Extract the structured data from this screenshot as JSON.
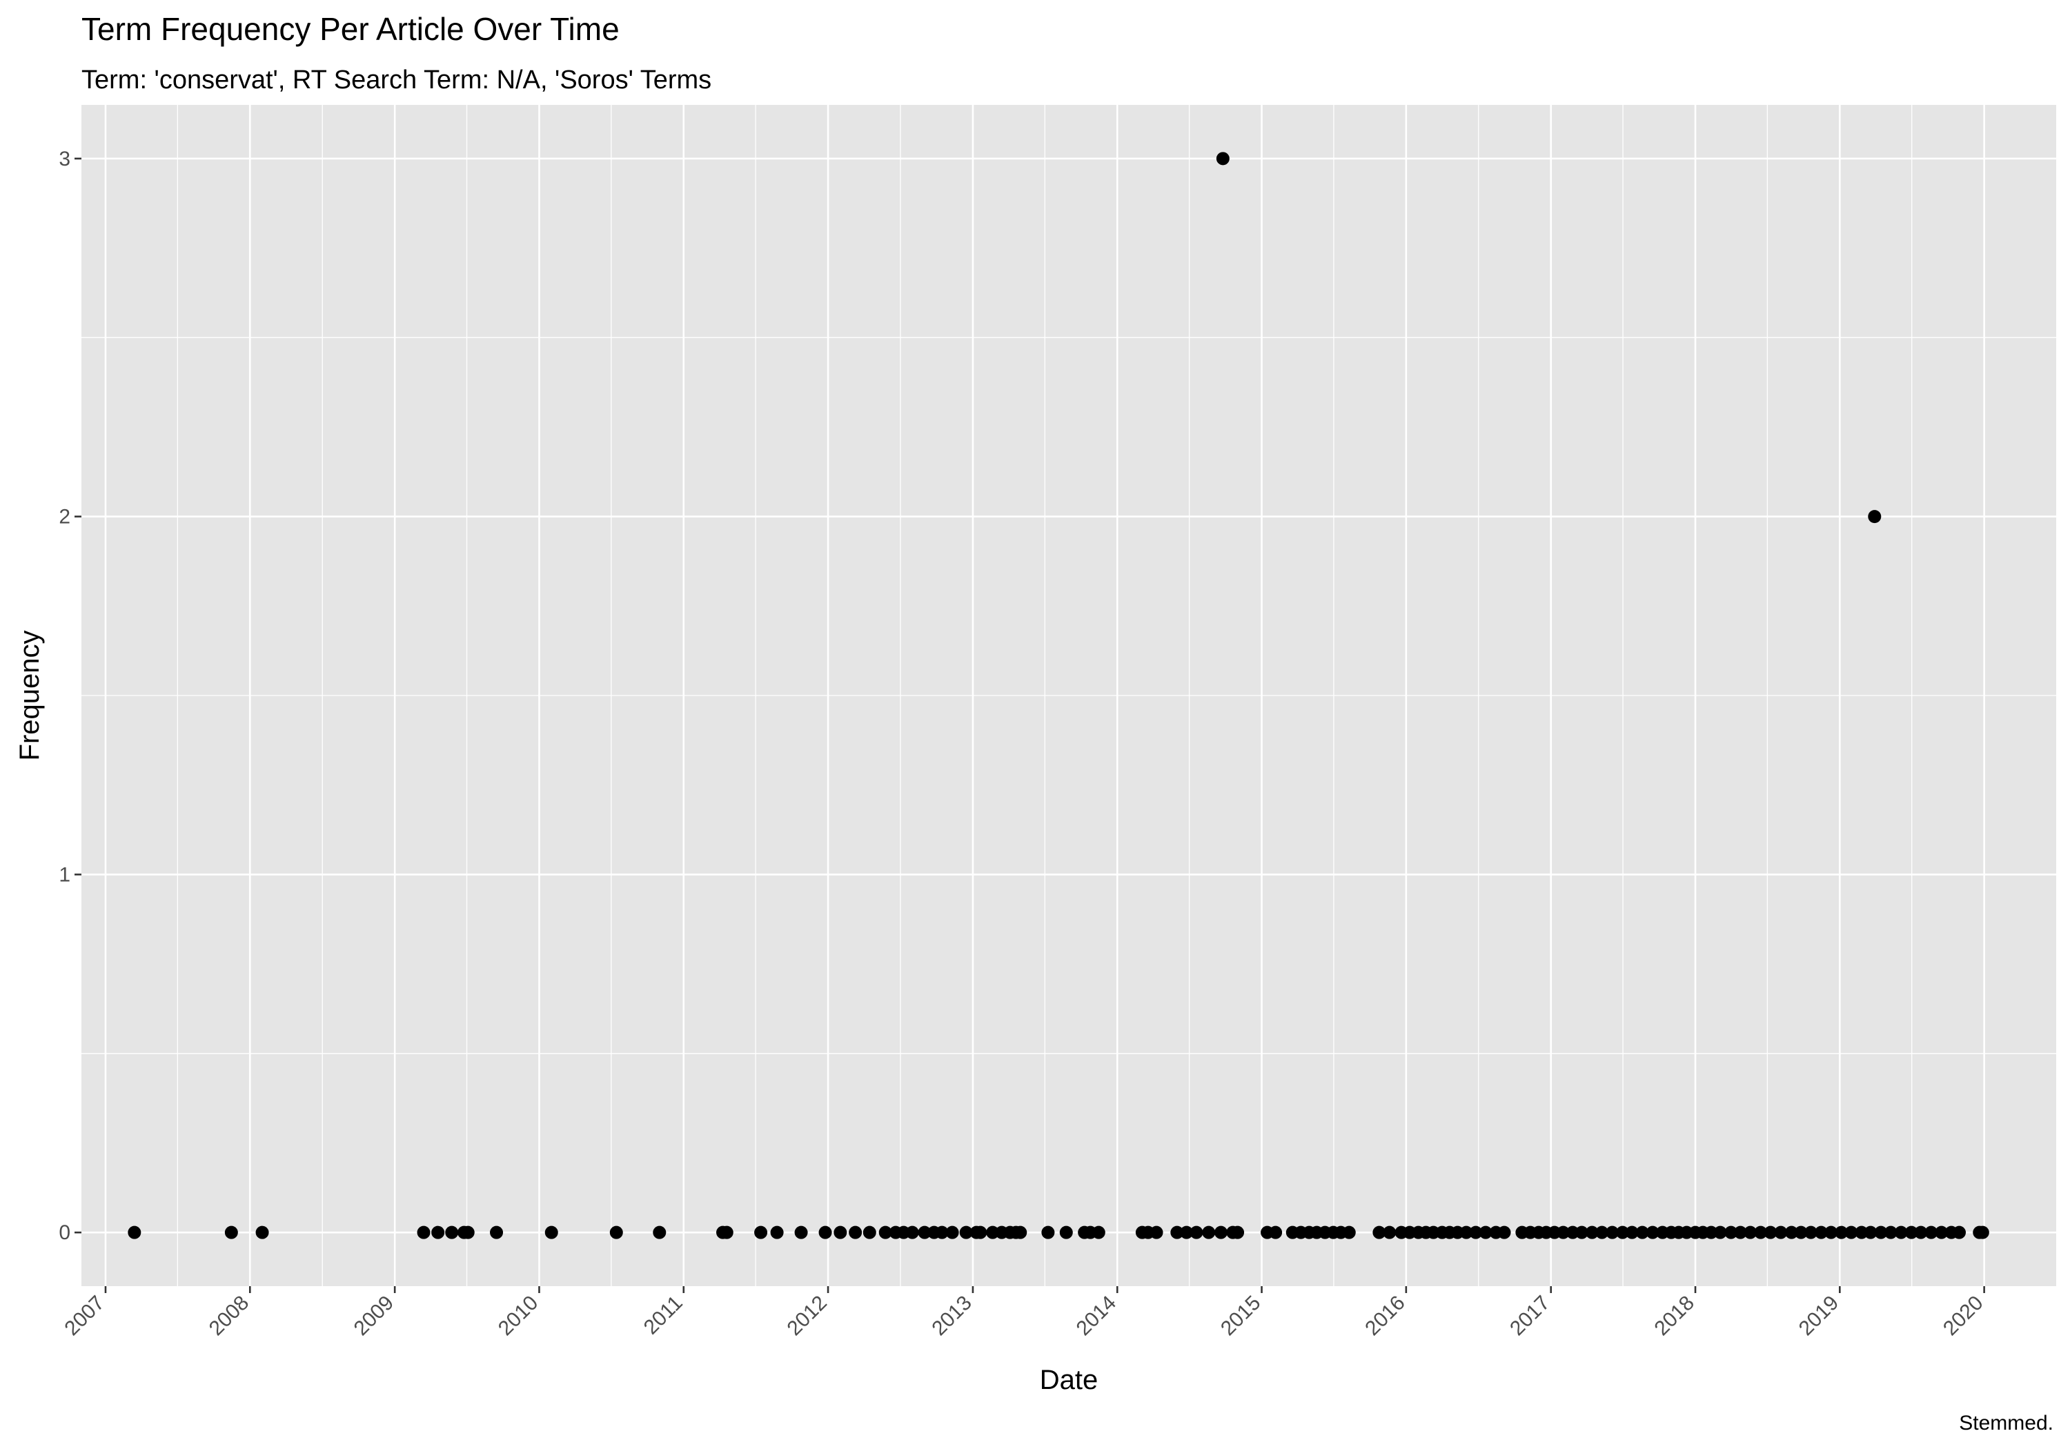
{
  "chart_data": {
    "type": "scatter",
    "title": "Term Frequency Per Article Over Time",
    "subtitle": "Term: 'conservat', RT Search Term: N/A, 'Soros' Terms",
    "xlabel": "Date",
    "ylabel": "Frequency",
    "caption": "Stemmed.",
    "x_ticks": [
      "2007",
      "2008",
      "2009",
      "2010",
      "2011",
      "2012",
      "2013",
      "2014",
      "2015",
      "2016",
      "2017",
      "2018",
      "2019",
      "2020"
    ],
    "y_ticks": [
      0,
      1,
      2,
      3
    ],
    "xlim": [
      "2006-11-01",
      "2020-07-01"
    ],
    "ylim": [
      -0.15,
      3.15
    ],
    "grid": true,
    "legend": "none",
    "colors": {
      "panel": "#e5e5e5",
      "grid": "#ffffff",
      "point": "#000000",
      "tick": "#333333"
    },
    "series": [
      {
        "points": [
          {
            "x": "2007-03-15",
            "y": 0
          },
          {
            "x": "2007-11-15",
            "y": 0
          },
          {
            "x": "2008-02-01",
            "y": 0
          },
          {
            "x": "2009-03-15",
            "y": 0
          },
          {
            "x": "2009-04-20",
            "y": 0
          },
          {
            "x": "2009-05-25",
            "y": 0
          },
          {
            "x": "2009-06-25",
            "y": 0
          },
          {
            "x": "2009-07-05",
            "y": 0
          },
          {
            "x": "2009-09-15",
            "y": 0
          },
          {
            "x": "2010-02-01",
            "y": 0
          },
          {
            "x": "2010-07-15",
            "y": 0
          },
          {
            "x": "2010-11-01",
            "y": 0
          },
          {
            "x": "2011-04-10",
            "y": 0
          },
          {
            "x": "2011-04-20",
            "y": 0
          },
          {
            "x": "2011-07-15",
            "y": 0
          },
          {
            "x": "2011-08-25",
            "y": 0
          },
          {
            "x": "2011-10-25",
            "y": 0
          },
          {
            "x": "2011-12-25",
            "y": 0
          },
          {
            "x": "2012-02-01",
            "y": 0
          },
          {
            "x": "2012-03-10",
            "y": 0
          },
          {
            "x": "2012-04-15",
            "y": 0
          },
          {
            "x": "2012-05-25",
            "y": 0
          },
          {
            "x": "2012-06-20",
            "y": 0
          },
          {
            "x": "2012-07-10",
            "y": 0
          },
          {
            "x": "2012-08-01",
            "y": 0
          },
          {
            "x": "2012-09-01",
            "y": 0
          },
          {
            "x": "2012-09-25",
            "y": 0
          },
          {
            "x": "2012-10-15",
            "y": 0
          },
          {
            "x": "2012-11-10",
            "y": 0
          },
          {
            "x": "2012-12-15",
            "y": 0
          },
          {
            "x": "2013-01-10",
            "y": 0
          },
          {
            "x": "2013-01-20",
            "y": 0
          },
          {
            "x": "2013-02-20",
            "y": 0
          },
          {
            "x": "2013-03-15",
            "y": 0
          },
          {
            "x": "2013-04-05",
            "y": 0
          },
          {
            "x": "2013-04-20",
            "y": 0
          },
          {
            "x": "2013-05-01",
            "y": 0
          },
          {
            "x": "2013-07-10",
            "y": 0
          },
          {
            "x": "2013-08-25",
            "y": 0
          },
          {
            "x": "2013-10-10",
            "y": 0
          },
          {
            "x": "2013-10-25",
            "y": 0
          },
          {
            "x": "2013-11-15",
            "y": 0
          },
          {
            "x": "2014-03-05",
            "y": 0
          },
          {
            "x": "2014-03-20",
            "y": 0
          },
          {
            "x": "2014-04-10",
            "y": 0
          },
          {
            "x": "2014-06-01",
            "y": 0
          },
          {
            "x": "2014-06-25",
            "y": 0
          },
          {
            "x": "2014-07-20",
            "y": 0
          },
          {
            "x": "2014-08-20",
            "y": 0
          },
          {
            "x": "2014-09-20",
            "y": 0
          },
          {
            "x": "2014-09-25",
            "y": 3
          },
          {
            "x": "2014-10-20",
            "y": 0
          },
          {
            "x": "2014-11-01",
            "y": 0
          },
          {
            "x": "2015-01-15",
            "y": 0
          },
          {
            "x": "2015-02-05",
            "y": 0
          },
          {
            "x": "2015-03-20",
            "y": 0
          },
          {
            "x": "2015-04-10",
            "y": 0
          },
          {
            "x": "2015-05-01",
            "y": 0
          },
          {
            "x": "2015-05-20",
            "y": 0
          },
          {
            "x": "2015-06-10",
            "y": 0
          },
          {
            "x": "2015-07-01",
            "y": 0
          },
          {
            "x": "2015-07-20",
            "y": 0
          },
          {
            "x": "2015-08-10",
            "y": 0
          },
          {
            "x": "2015-10-25",
            "y": 0
          },
          {
            "x": "2015-11-20",
            "y": 0
          },
          {
            "x": "2015-12-20",
            "y": 0
          },
          {
            "x": "2016-01-10",
            "y": 0
          },
          {
            "x": "2016-02-01",
            "y": 0
          },
          {
            "x": "2016-02-20",
            "y": 0
          },
          {
            "x": "2016-03-10",
            "y": 0
          },
          {
            "x": "2016-04-01",
            "y": 0
          },
          {
            "x": "2016-04-20",
            "y": 0
          },
          {
            "x": "2016-05-10",
            "y": 0
          },
          {
            "x": "2016-06-01",
            "y": 0
          },
          {
            "x": "2016-06-25",
            "y": 0
          },
          {
            "x": "2016-07-20",
            "y": 0
          },
          {
            "x": "2016-08-15",
            "y": 0
          },
          {
            "x": "2016-09-05",
            "y": 0
          },
          {
            "x": "2016-10-20",
            "y": 0
          },
          {
            "x": "2016-11-10",
            "y": 0
          },
          {
            "x": "2016-12-01",
            "y": 0
          },
          {
            "x": "2016-12-20",
            "y": 0
          },
          {
            "x": "2017-01-10",
            "y": 0
          },
          {
            "x": "2017-02-01",
            "y": 0
          },
          {
            "x": "2017-02-25",
            "y": 0
          },
          {
            "x": "2017-03-20",
            "y": 0
          },
          {
            "x": "2017-04-15",
            "y": 0
          },
          {
            "x": "2017-05-10",
            "y": 0
          },
          {
            "x": "2017-06-05",
            "y": 0
          },
          {
            "x": "2017-07-01",
            "y": 0
          },
          {
            "x": "2017-07-25",
            "y": 0
          },
          {
            "x": "2017-08-20",
            "y": 0
          },
          {
            "x": "2017-09-15",
            "y": 0
          },
          {
            "x": "2017-10-10",
            "y": 0
          },
          {
            "x": "2017-11-01",
            "y": 0
          },
          {
            "x": "2017-11-20",
            "y": 0
          },
          {
            "x": "2017-12-10",
            "y": 0
          },
          {
            "x": "2018-01-01",
            "y": 0
          },
          {
            "x": "2018-01-20",
            "y": 0
          },
          {
            "x": "2018-02-10",
            "y": 0
          },
          {
            "x": "2018-03-05",
            "y": 0
          },
          {
            "x": "2018-04-01",
            "y": 0
          },
          {
            "x": "2018-04-25",
            "y": 0
          },
          {
            "x": "2018-05-20",
            "y": 0
          },
          {
            "x": "2018-06-15",
            "y": 0
          },
          {
            "x": "2018-07-10",
            "y": 0
          },
          {
            "x": "2018-08-05",
            "y": 0
          },
          {
            "x": "2018-09-01",
            "y": 0
          },
          {
            "x": "2018-09-25",
            "y": 0
          },
          {
            "x": "2018-10-20",
            "y": 0
          },
          {
            "x": "2018-11-15",
            "y": 0
          },
          {
            "x": "2018-12-10",
            "y": 0
          },
          {
            "x": "2019-01-05",
            "y": 0
          },
          {
            "x": "2019-01-30",
            "y": 0
          },
          {
            "x": "2019-02-25",
            "y": 0
          },
          {
            "x": "2019-03-20",
            "y": 0
          },
          {
            "x": "2019-03-30",
            "y": 2
          },
          {
            "x": "2019-04-15",
            "y": 0
          },
          {
            "x": "2019-05-10",
            "y": 0
          },
          {
            "x": "2019-06-05",
            "y": 0
          },
          {
            "x": "2019-07-01",
            "y": 0
          },
          {
            "x": "2019-07-25",
            "y": 0
          },
          {
            "x": "2019-08-20",
            "y": 0
          },
          {
            "x": "2019-09-15",
            "y": 0
          },
          {
            "x": "2019-10-10",
            "y": 0
          },
          {
            "x": "2019-10-30",
            "y": 0
          },
          {
            "x": "2019-12-20",
            "y": 0
          },
          {
            "x": "2019-12-28",
            "y": 0
          }
        ]
      }
    ]
  }
}
